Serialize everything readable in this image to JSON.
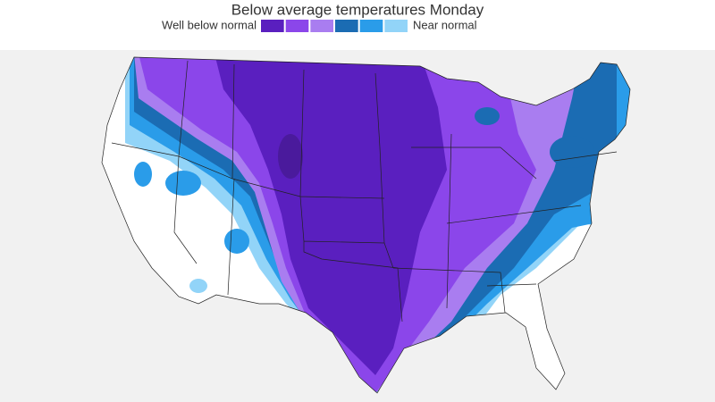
{
  "header": {
    "title": "Below average temperatures Monday"
  },
  "legend": {
    "low_label": "Well below normal",
    "high_label": "Near normal",
    "colors": [
      "#5a1fbf",
      "#8b46ea",
      "#a97df0",
      "#1b6cb3",
      "#2a9ce9",
      "#92d4f8"
    ]
  }
}
